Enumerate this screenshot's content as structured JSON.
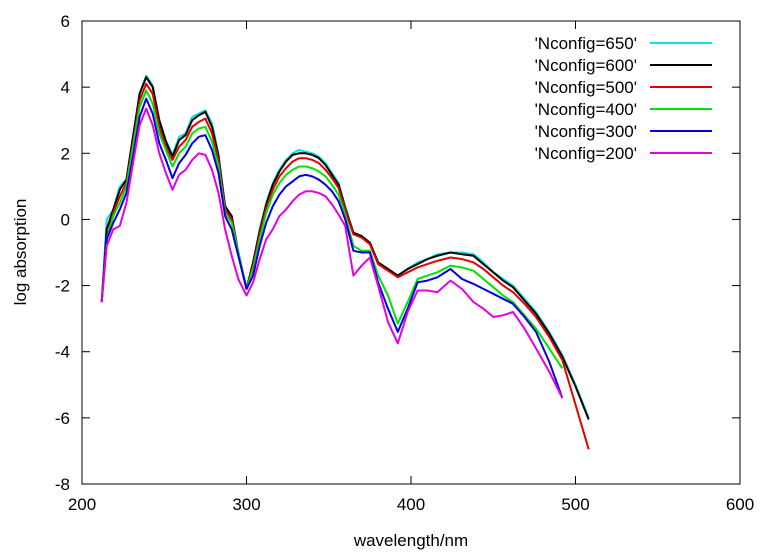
{
  "chart_data": {
    "type": "line",
    "xlabel": "wavelength/nm",
    "ylabel": "log absorption",
    "xlim": [
      200,
      600
    ],
    "ylim": [
      -8,
      6
    ],
    "xticks": [
      200,
      300,
      400,
      500,
      600
    ],
    "yticks": [
      -8,
      -6,
      -4,
      -2,
      0,
      2,
      4,
      6
    ],
    "grid": false,
    "legend": "top-right",
    "series": [
      {
        "name": "'Nconfig=650'",
        "color": "#00e5e5",
        "x": [
          212,
          215,
          219,
          223,
          227,
          231,
          235,
          239,
          243,
          247,
          251,
          255,
          259,
          263,
          267,
          271,
          275,
          279,
          283,
          287,
          291,
          295,
          300,
          304,
          308,
          312,
          316,
          320,
          324,
          328,
          332,
          336,
          340,
          344,
          348,
          352,
          356,
          360,
          365,
          370,
          375,
          380,
          386,
          392,
          398,
          404,
          410,
          416,
          424,
          431,
          438,
          444,
          450,
          456,
          462,
          469,
          476,
          484,
          492,
          500,
          508
        ],
        "y": [
          -2.5,
          0.0,
          0.3,
          1.0,
          1.2,
          2.5,
          3.8,
          4.35,
          4.05,
          3.0,
          2.4,
          1.95,
          2.5,
          2.6,
          3.1,
          3.2,
          3.3,
          2.9,
          2.0,
          0.4,
          0.1,
          -1.0,
          -2.1,
          -1.3,
          -0.3,
          0.5,
          1.1,
          1.5,
          1.8,
          2.0,
          2.1,
          2.05,
          2.0,
          1.9,
          1.7,
          1.4,
          1.1,
          0.4,
          -0.4,
          -0.5,
          -0.7,
          -1.3,
          -1.5,
          -1.7,
          -1.5,
          -1.3,
          -1.2,
          -1.05,
          -1.0,
          -1.0,
          -1.05,
          -1.3,
          -1.6,
          -1.8,
          -2.0,
          -2.4,
          -2.8,
          -3.4,
          -4.1,
          -5.0,
          -6.0
        ]
      },
      {
        "name": "'Nconfig=600'",
        "color": "#000000",
        "x": [
          212,
          215,
          219,
          223,
          227,
          231,
          235,
          239,
          243,
          247,
          251,
          255,
          259,
          263,
          267,
          271,
          275,
          279,
          283,
          287,
          291,
          295,
          300,
          304,
          308,
          312,
          316,
          320,
          324,
          328,
          332,
          336,
          340,
          344,
          348,
          352,
          356,
          360,
          365,
          370,
          375,
          380,
          386,
          392,
          398,
          404,
          410,
          416,
          424,
          431,
          438,
          444,
          450,
          456,
          462,
          469,
          476,
          484,
          492,
          500,
          508
        ],
        "y": [
          -2.5,
          -0.3,
          0.3,
          0.9,
          1.2,
          2.5,
          3.8,
          4.3,
          4.0,
          3.0,
          2.35,
          1.9,
          2.4,
          2.55,
          3.0,
          3.15,
          3.25,
          2.8,
          1.9,
          0.4,
          0.1,
          -1.0,
          -2.1,
          -1.3,
          -0.35,
          0.45,
          1.05,
          1.45,
          1.75,
          1.95,
          2.0,
          2.0,
          1.95,
          1.85,
          1.65,
          1.35,
          1.05,
          0.35,
          -0.4,
          -0.5,
          -0.7,
          -1.3,
          -1.5,
          -1.7,
          -1.5,
          -1.35,
          -1.2,
          -1.1,
          -1.0,
          -1.05,
          -1.1,
          -1.35,
          -1.6,
          -1.85,
          -2.05,
          -2.45,
          -2.85,
          -3.45,
          -4.15,
          -5.05,
          -6.05
        ]
      },
      {
        "name": "'Nconfig=500'",
        "color": "#e50000",
        "x": [
          212,
          215,
          219,
          223,
          227,
          231,
          235,
          239,
          243,
          247,
          251,
          255,
          259,
          263,
          267,
          271,
          275,
          279,
          283,
          287,
          291,
          295,
          300,
          304,
          308,
          312,
          316,
          320,
          324,
          328,
          332,
          336,
          340,
          344,
          348,
          352,
          356,
          360,
          365,
          370,
          375,
          380,
          386,
          392,
          398,
          404,
          410,
          416,
          424,
          431,
          438,
          444,
          450,
          456,
          462,
          469,
          476,
          484,
          492,
          500,
          508
        ],
        "y": [
          -2.5,
          -0.6,
          0.2,
          0.7,
          1.1,
          2.3,
          3.6,
          4.1,
          3.8,
          2.8,
          2.2,
          1.8,
          2.2,
          2.4,
          2.8,
          2.95,
          3.05,
          2.6,
          1.8,
          0.3,
          0.0,
          -1.0,
          -2.1,
          -1.4,
          -0.45,
          0.35,
          0.9,
          1.3,
          1.55,
          1.75,
          1.85,
          1.85,
          1.8,
          1.7,
          1.5,
          1.25,
          0.95,
          0.3,
          -0.45,
          -0.55,
          -0.75,
          -1.35,
          -1.55,
          -1.75,
          -1.6,
          -1.45,
          -1.35,
          -1.25,
          -1.15,
          -1.2,
          -1.3,
          -1.5,
          -1.75,
          -2.0,
          -2.2,
          -2.55,
          -2.95,
          -3.55,
          -4.25,
          -5.6,
          -6.95
        ]
      },
      {
        "name": "'Nconfig=400'",
        "color": "#00e500",
        "x": [
          212,
          215,
          219,
          223,
          227,
          231,
          235,
          239,
          243,
          247,
          251,
          255,
          259,
          263,
          267,
          271,
          275,
          279,
          283,
          287,
          291,
          295,
          300,
          304,
          308,
          312,
          316,
          320,
          324,
          328,
          332,
          336,
          340,
          344,
          348,
          352,
          356,
          360,
          365,
          370,
          375,
          380,
          386,
          392,
          398,
          404,
          410,
          416,
          424,
          431,
          438,
          444,
          450,
          456,
          462,
          469,
          476,
          484,
          492
        ],
        "y": [
          -2.5,
          -0.6,
          0.1,
          0.5,
          1.0,
          2.2,
          3.4,
          3.9,
          3.5,
          2.6,
          2.1,
          1.6,
          2.0,
          2.2,
          2.6,
          2.75,
          2.8,
          2.35,
          1.6,
          0.2,
          -0.1,
          -1.0,
          -2.1,
          -1.5,
          -0.6,
          0.2,
          0.75,
          1.1,
          1.35,
          1.5,
          1.6,
          1.6,
          1.55,
          1.45,
          1.3,
          1.05,
          0.75,
          0.15,
          -0.8,
          -0.95,
          -0.95,
          -1.7,
          -2.3,
          -3.15,
          -2.5,
          -1.8,
          -1.7,
          -1.6,
          -1.4,
          -1.45,
          -1.55,
          -1.8,
          -2.05,
          -2.3,
          -2.5,
          -2.9,
          -3.3,
          -3.9,
          -4.5
        ]
      },
      {
        "name": "'Nconfig=300'",
        "color": "#0000e5",
        "x": [
          212,
          215,
          219,
          223,
          227,
          231,
          235,
          239,
          243,
          247,
          251,
          255,
          259,
          263,
          267,
          271,
          275,
          279,
          283,
          287,
          291,
          295,
          300,
          304,
          308,
          312,
          316,
          320,
          324,
          328,
          332,
          336,
          340,
          344,
          348,
          352,
          356,
          360,
          365,
          370,
          375,
          380,
          386,
          392,
          398,
          404,
          410,
          416,
          424,
          431,
          438,
          444,
          450,
          456,
          462,
          469,
          476,
          484,
          492
        ],
        "y": [
          -2.5,
          -0.6,
          -0.1,
          0.3,
          0.8,
          1.9,
          3.1,
          3.65,
          3.2,
          2.3,
          1.8,
          1.25,
          1.7,
          1.95,
          2.3,
          2.5,
          2.55,
          2.1,
          1.4,
          0.1,
          -0.3,
          -1.1,
          -2.1,
          -1.7,
          -0.8,
          -0.1,
          0.4,
          0.75,
          1.0,
          1.15,
          1.3,
          1.35,
          1.3,
          1.2,
          1.05,
          0.85,
          0.55,
          0.0,
          -0.95,
          -1.0,
          -1.0,
          -1.9,
          -2.7,
          -3.4,
          -2.7,
          -1.9,
          -1.85,
          -1.75,
          -1.5,
          -1.8,
          -1.95,
          -2.1,
          -2.25,
          -2.4,
          -2.55,
          -2.95,
          -3.4,
          -4.3,
          -5.4
        ]
      },
      {
        "name": "'Nconfig=200'",
        "color": "#e500e5",
        "x": [
          212,
          215,
          219,
          223,
          227,
          231,
          235,
          239,
          243,
          247,
          251,
          255,
          259,
          263,
          267,
          271,
          275,
          279,
          283,
          287,
          291,
          295,
          300,
          304,
          308,
          312,
          316,
          320,
          324,
          328,
          332,
          336,
          340,
          344,
          348,
          352,
          356,
          360,
          365,
          370,
          375,
          380,
          386,
          392,
          398,
          404,
          410,
          416,
          424,
          431,
          438,
          444,
          450,
          456,
          462,
          469,
          476,
          484,
          492
        ],
        "y": [
          -2.5,
          -0.8,
          -0.3,
          -0.2,
          0.5,
          1.7,
          2.85,
          3.35,
          2.85,
          2.0,
          1.4,
          0.9,
          1.35,
          1.5,
          1.8,
          2.0,
          1.95,
          1.5,
          0.8,
          -0.3,
          -1.1,
          -1.8,
          -2.3,
          -1.9,
          -1.2,
          -0.6,
          -0.3,
          0.1,
          0.3,
          0.55,
          0.75,
          0.85,
          0.85,
          0.8,
          0.7,
          0.45,
          0.15,
          -0.2,
          -1.7,
          -1.4,
          -1.15,
          -2.0,
          -3.1,
          -3.75,
          -2.8,
          -2.15,
          -2.15,
          -2.2,
          -1.85,
          -2.1,
          -2.5,
          -2.7,
          -2.95,
          -2.9,
          -2.8,
          -3.3,
          -3.9,
          -4.6,
          -5.4
        ]
      }
    ]
  }
}
